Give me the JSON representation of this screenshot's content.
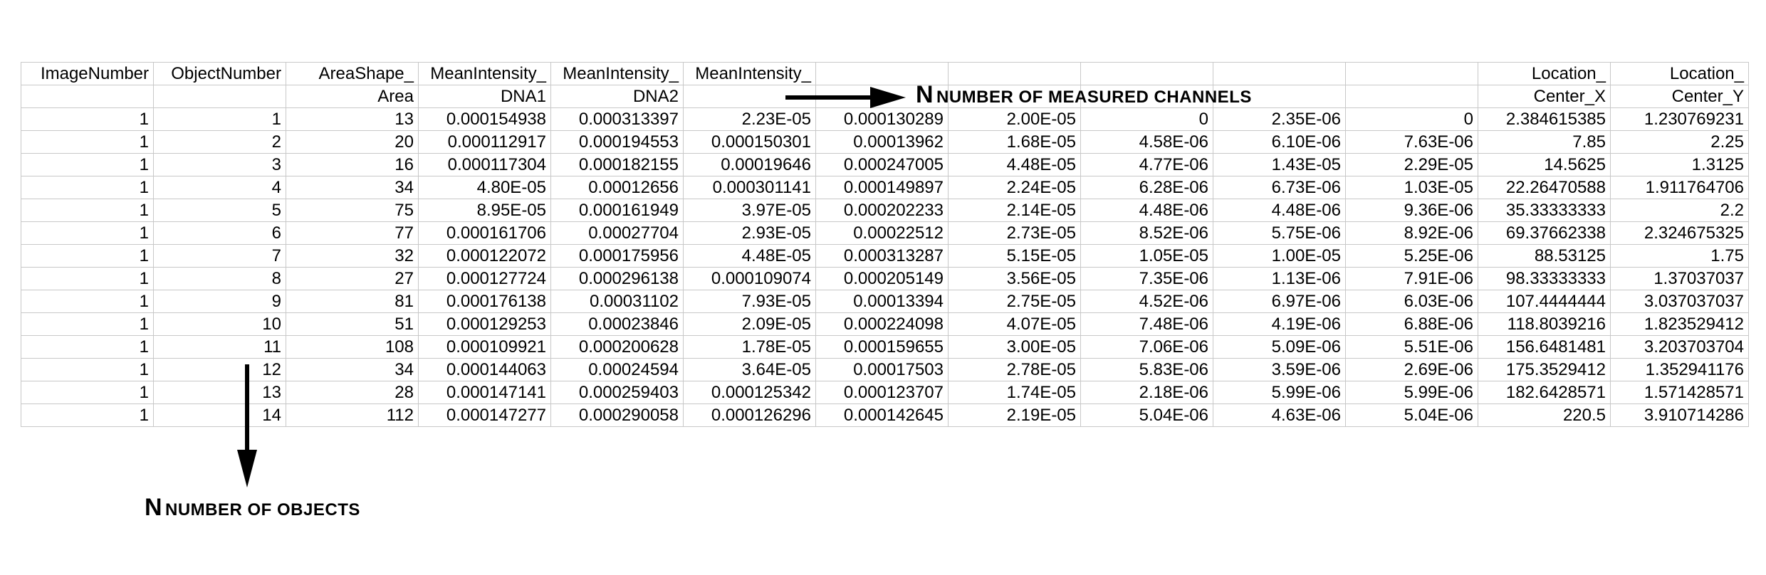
{
  "header_row1": [
    "ImageNumber",
    "ObjectNumber",
    "AreaShape_",
    "MeanIntensity_",
    "MeanIntensity_",
    "MeanIntensity_",
    "",
    "",
    "",
    "",
    "",
    "Location_",
    "Location_"
  ],
  "header_row2": [
    "",
    "",
    "Area",
    "DNA1",
    "DNA2",
    "",
    "",
    "",
    "",
    "",
    "",
    "Center_X",
    "Center_Y"
  ],
  "rows": [
    [
      "1",
      "1",
      "13",
      "0.000154938",
      "0.000313397",
      "2.23E-05",
      "0.000130289",
      "2.00E-05",
      "0",
      "2.35E-06",
      "0",
      "2.384615385",
      "1.230769231"
    ],
    [
      "1",
      "2",
      "20",
      "0.000112917",
      "0.000194553",
      "0.000150301",
      "0.00013962",
      "1.68E-05",
      "4.58E-06",
      "6.10E-06",
      "7.63E-06",
      "7.85",
      "2.25"
    ],
    [
      "1",
      "3",
      "16",
      "0.000117304",
      "0.000182155",
      "0.00019646",
      "0.000247005",
      "4.48E-05",
      "4.77E-06",
      "1.43E-05",
      "2.29E-05",
      "14.5625",
      "1.3125"
    ],
    [
      "1",
      "4",
      "34",
      "4.80E-05",
      "0.00012656",
      "0.000301141",
      "0.000149897",
      "2.24E-05",
      "6.28E-06",
      "6.73E-06",
      "1.03E-05",
      "22.26470588",
      "1.911764706"
    ],
    [
      "1",
      "5",
      "75",
      "8.95E-05",
      "0.000161949",
      "3.97E-05",
      "0.000202233",
      "2.14E-05",
      "4.48E-06",
      "4.48E-06",
      "9.36E-06",
      "35.33333333",
      "2.2"
    ],
    [
      "1",
      "6",
      "77",
      "0.000161706",
      "0.00027704",
      "2.93E-05",
      "0.00022512",
      "2.73E-05",
      "8.52E-06",
      "5.75E-06",
      "8.92E-06",
      "69.37662338",
      "2.324675325"
    ],
    [
      "1",
      "7",
      "32",
      "0.000122072",
      "0.000175956",
      "4.48E-05",
      "0.000313287",
      "5.15E-05",
      "1.05E-05",
      "1.00E-05",
      "5.25E-06",
      "88.53125",
      "1.75"
    ],
    [
      "1",
      "8",
      "27",
      "0.000127724",
      "0.000296138",
      "0.000109074",
      "0.000205149",
      "3.56E-05",
      "7.35E-06",
      "1.13E-06",
      "7.91E-06",
      "98.33333333",
      "1.37037037"
    ],
    [
      "1",
      "9",
      "81",
      "0.000176138",
      "0.00031102",
      "7.93E-05",
      "0.00013394",
      "2.75E-05",
      "4.52E-06",
      "6.97E-06",
      "6.03E-06",
      "107.4444444",
      "3.037037037"
    ],
    [
      "1",
      "10",
      "51",
      "0.000129253",
      "0.00023846",
      "2.09E-05",
      "0.000224098",
      "4.07E-05",
      "7.48E-06",
      "4.19E-06",
      "6.88E-06",
      "118.8039216",
      "1.823529412"
    ],
    [
      "1",
      "11",
      "108",
      "0.000109921",
      "0.000200628",
      "1.78E-05",
      "0.000159655",
      "3.00E-05",
      "7.06E-06",
      "5.09E-06",
      "5.51E-06",
      "156.6481481",
      "3.203703704"
    ],
    [
      "1",
      "12",
      "34",
      "0.000144063",
      "0.00024594",
      "3.64E-05",
      "0.00017503",
      "2.78E-05",
      "5.83E-06",
      "3.59E-06",
      "2.69E-06",
      "175.3529412",
      "1.352941176"
    ],
    [
      "1",
      "13",
      "28",
      "0.000147141",
      "0.000259403",
      "0.000125342",
      "0.000123707",
      "1.74E-05",
      "2.18E-06",
      "5.99E-06",
      "5.99E-06",
      "182.6428571",
      "1.571428571"
    ],
    [
      "1",
      "14",
      "112",
      "0.000147277",
      "0.000290058",
      "0.000126296",
      "0.000142645",
      "2.19E-05",
      "5.04E-06",
      "4.63E-06",
      "5.04E-06",
      "220.5",
      "3.910714286"
    ]
  ],
  "annotations": {
    "channels": {
      "big": "N",
      "small": "NUMBER OF MEASURED CHANNELS"
    },
    "objects": {
      "big": "N",
      "small": "NUMBER OF OBJECTS"
    }
  }
}
